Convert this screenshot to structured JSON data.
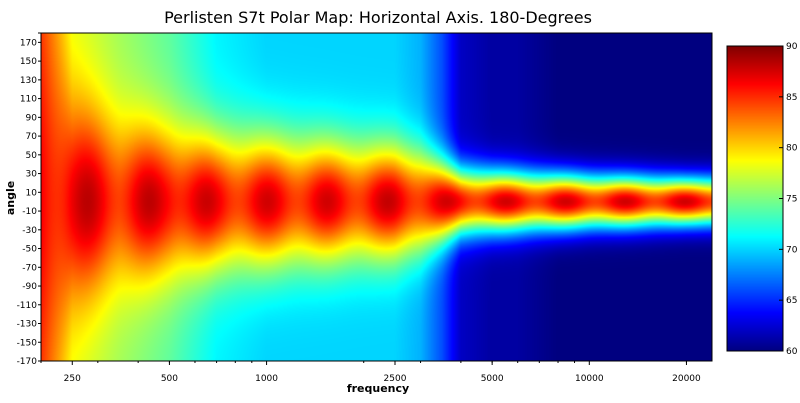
{
  "chart_data": {
    "type": "heatmap",
    "title": "Perlisten S7t Polar Map: Horizontal Axis. 180-Degrees",
    "xlabel": "frequency",
    "ylabel": "angle",
    "x_scale": "log",
    "xlim": [
      200,
      24000
    ],
    "ylim": [
      -170,
      180
    ],
    "x_ticks": [
      250,
      500,
      1000,
      2500,
      5000,
      10000,
      20000
    ],
    "x_tick_labels": [
      "250",
      "500",
      "1000",
      "2500",
      "5000",
      "10000",
      "20000"
    ],
    "y_ticks": [
      180,
      170,
      150,
      130,
      110,
      90,
      70,
      50,
      30,
      10,
      -10,
      -30,
      -50,
      -70,
      -90,
      -110,
      -130,
      -150,
      -170
    ],
    "y_tick_labels": [
      "",
      "170",
      "150",
      "130",
      "110",
      "90",
      "70",
      "50",
      "30",
      "10",
      "-10",
      "-30",
      "-50",
      "-70",
      "-90",
      "-110",
      "-130",
      "-150",
      "-170"
    ],
    "colorbar": {
      "min": 60,
      "max": 90,
      "ticks": [
        90,
        85,
        80,
        75,
        70,
        65,
        60
      ],
      "tick_labels": [
        "90",
        "85",
        "80",
        "75",
        "70",
        "65",
        "60"
      ],
      "colormap": "jet"
    },
    "level_model": {
      "frequencies": [
        200,
        250,
        350,
        500,
        700,
        1000,
        1500,
        2000,
        2500,
        3000,
        3500,
        4000,
        5000,
        6000,
        8000,
        10000,
        12000,
        15000,
        20000,
        24000
      ],
      "on_axis_level": [
        86,
        87,
        86,
        87,
        86,
        86,
        86,
        86,
        86.5,
        86,
        86,
        86,
        86,
        86,
        86,
        86,
        86,
        86,
        86,
        86
      ],
      "half_width_deg": [
        210,
        135,
        110,
        100,
        92,
        88,
        82,
        78,
        75,
        68,
        55,
        45,
        42,
        40,
        38,
        36,
        35,
        34,
        32,
        32
      ],
      "off_axis_floor": [
        84,
        78,
        76,
        74,
        71,
        70,
        70,
        70,
        70,
        69,
        66,
        62,
        61,
        61,
        60,
        60,
        60,
        60,
        60,
        60
      ]
    }
  }
}
